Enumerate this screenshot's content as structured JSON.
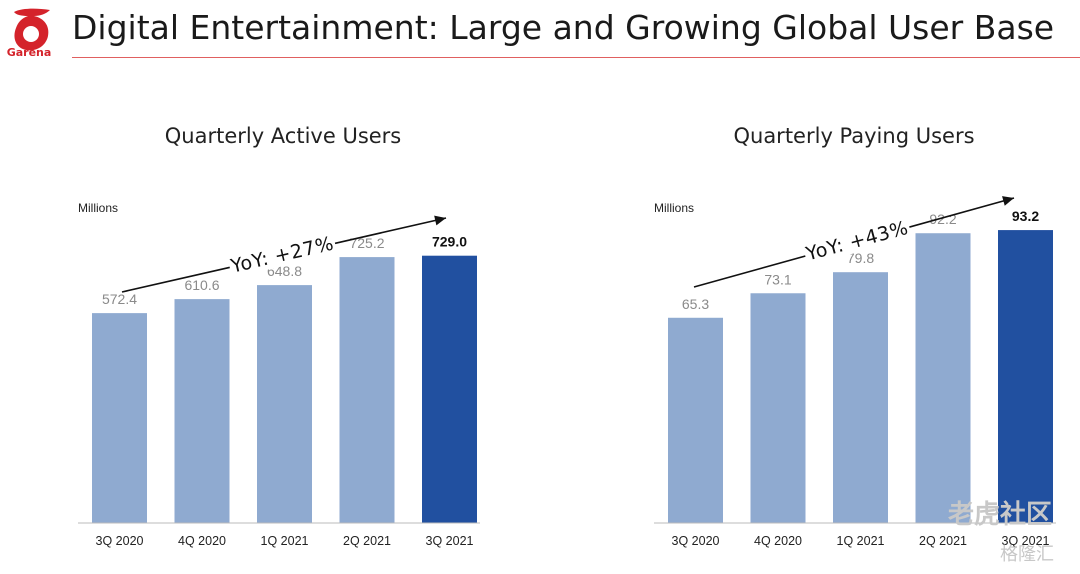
{
  "header": {
    "logo_text": "Garena",
    "title": "Digital Entertainment: Large and Growing Global User Base"
  },
  "colors": {
    "bar_past": "#8faad0",
    "bar_current": "#2150a0",
    "logo": "#d4232b",
    "rule": "#e06060"
  },
  "chart_data": [
    {
      "type": "bar",
      "title": "Quarterly Active Users",
      "units": "Millions",
      "categories": [
        "3Q 2020",
        "4Q 2020",
        "1Q 2021",
        "2Q 2021",
        "3Q 2021"
      ],
      "values": [
        572.4,
        610.6,
        648.8,
        725.2,
        729.0
      ],
      "value_labels": [
        "572.4",
        "610.6",
        "648.8",
        "725.2",
        "729.0"
      ],
      "highlight_index": 4,
      "annotation": "YoY: +27%",
      "ylim": [
        0,
        900
      ],
      "grid": false,
      "legend": "none"
    },
    {
      "type": "bar",
      "title": "Quarterly Paying Users",
      "units": "Millions",
      "categories": [
        "3Q 2020",
        "4Q 2020",
        "1Q 2021",
        "2Q 2021",
        "3Q 2021"
      ],
      "values": [
        65.3,
        73.1,
        79.8,
        92.2,
        93.2
      ],
      "value_labels": [
        "65.3",
        "73.1",
        "79.8",
        "92.2",
        "93.2"
      ],
      "highlight_index": 4,
      "annotation": "YoY: +43%",
      "ylim": [
        0,
        105
      ],
      "grid": false,
      "legend": "none"
    }
  ],
  "watermark": {
    "line1": "老虎社区",
    "line2": "格隆汇"
  }
}
